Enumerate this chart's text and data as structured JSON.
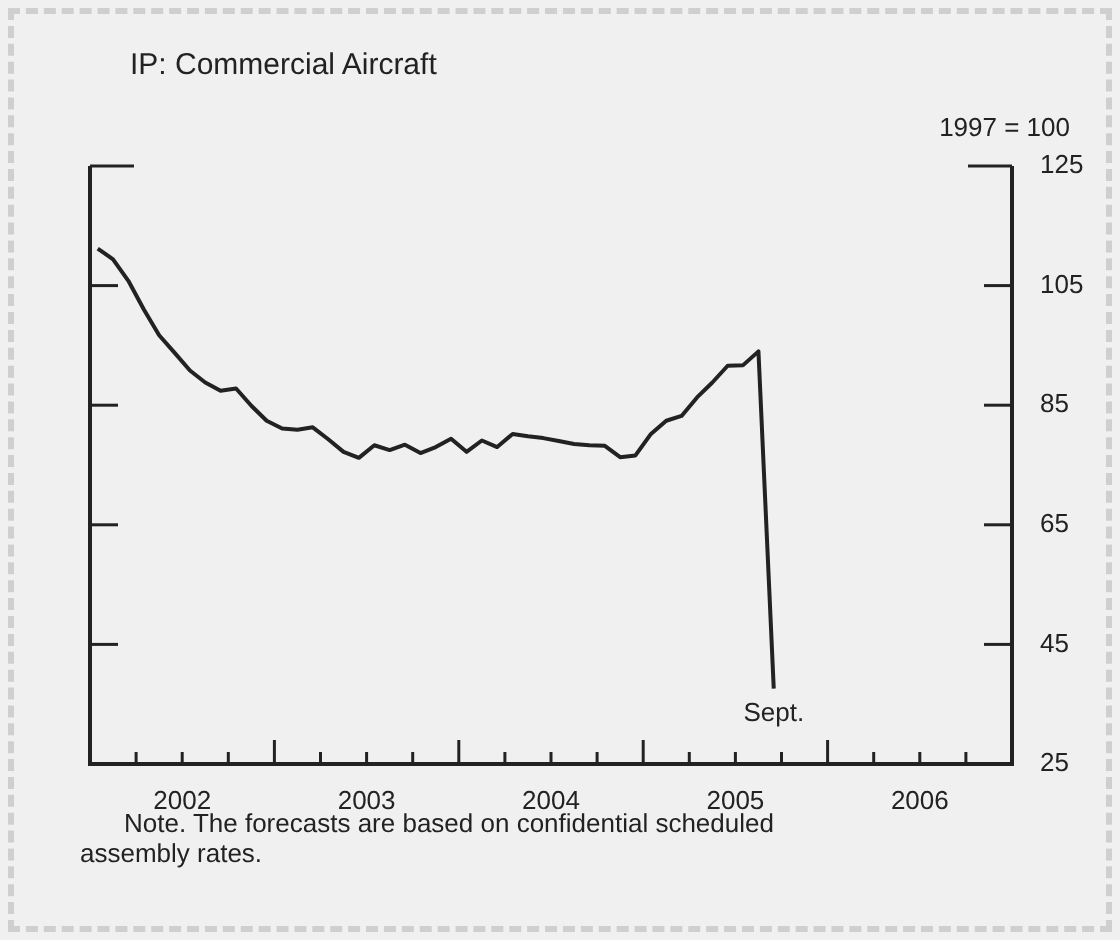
{
  "chart_data": {
    "type": "line",
    "title": "IP: Commercial Aircraft",
    "ylabel": "1997 = 100",
    "x": [
      2002.042,
      2002.125,
      2002.208,
      2002.292,
      2002.375,
      2002.458,
      2002.542,
      2002.625,
      2002.708,
      2002.792,
      2002.875,
      2002.958,
      2003.042,
      2003.125,
      2003.208,
      2003.292,
      2003.375,
      2003.458,
      2003.542,
      2003.625,
      2003.708,
      2003.792,
      2003.875,
      2003.958,
      2004.042,
      2004.125,
      2004.208,
      2004.292,
      2004.375,
      2004.458,
      2004.542,
      2004.625,
      2004.708,
      2004.792,
      2004.875,
      2004.958,
      2005.042,
      2005.125,
      2005.208,
      2005.292,
      2005.375,
      2005.458,
      2005.542,
      2005.625,
      2005.708
    ],
    "series": [
      {
        "color": "#222222",
        "values": [
          111.2,
          109.4,
          105.8,
          101.0,
          96.7,
          93.8,
          90.8,
          88.8,
          87.4,
          87.8,
          84.9,
          82.4,
          81.1,
          80.9,
          81.3,
          79.3,
          77.2,
          76.2,
          78.3,
          77.5,
          78.4,
          77.0,
          78.0,
          79.4,
          77.2,
          79.1,
          78.0,
          80.2,
          79.8,
          79.5,
          79.0,
          78.5,
          78.3,
          78.2,
          76.3,
          76.6,
          80.2,
          82.4,
          83.2,
          86.3,
          88.8,
          91.6,
          91.7,
          94.0,
          37.6
        ]
      }
    ],
    "annotations": [
      {
        "text": "Sept.",
        "x": 2005.708,
        "y": 37.6
      },
      "Note. The forecasts are based on confidential scheduled assembly rates."
    ],
    "xlim": [
      2002,
      2007
    ],
    "xticks": [
      {
        "value": 2002.25,
        "label": null
      },
      {
        "value": 2002.5,
        "label": "2002"
      },
      {
        "value": 2002.75,
        "label": null
      },
      {
        "value": 2003,
        "label": null
      },
      {
        "value": 2003.25,
        "label": null
      },
      {
        "value": 2003.5,
        "label": "2003"
      },
      {
        "value": 2003.75,
        "label": null
      },
      {
        "value": 2004,
        "label": null
      },
      {
        "value": 2004.25,
        "label": null
      },
      {
        "value": 2004.5,
        "label": "2004"
      },
      {
        "value": 2004.75,
        "label": null
      },
      {
        "value": 2005,
        "label": null
      },
      {
        "value": 2005.25,
        "label": null
      },
      {
        "value": 2005.5,
        "label": "2005"
      },
      {
        "value": 2005.75,
        "label": null
      },
      {
        "value": 2006,
        "label": null
      },
      {
        "value": 2006.25,
        "label": null
      },
      {
        "value": 2006.5,
        "label": "2006"
      },
      {
        "value": 2006.75,
        "label": null
      }
    ],
    "ylim": [
      25,
      125
    ],
    "yticks": [
      25,
      45,
      65,
      85,
      105,
      125
    ],
    "grid": false,
    "legend": false,
    "marker": "none",
    "line_style": "solid"
  }
}
